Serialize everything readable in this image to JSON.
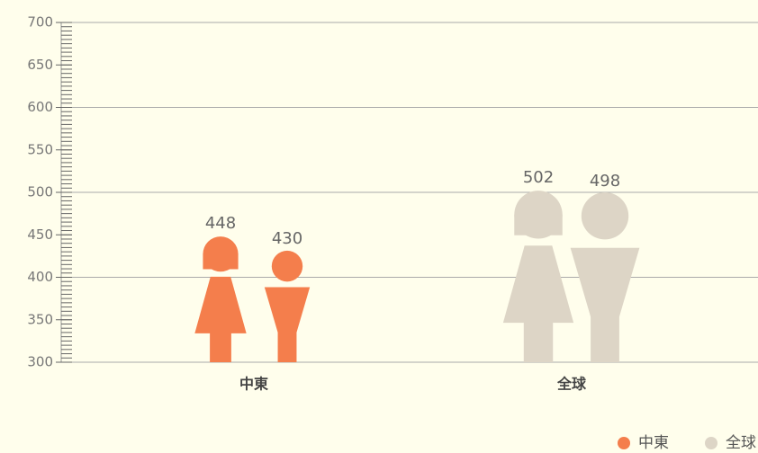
{
  "chart_data": {
    "type": "pictogram",
    "series": [
      {
        "name": "中東",
        "color": "#f47e4c",
        "values": [
          448,
          430
        ]
      },
      {
        "name": "全球",
        "color": "#ddd5c6",
        "values": [
          502,
          498
        ]
      }
    ],
    "ylim": [
      300,
      700
    ],
    "yticks": [
      300,
      350,
      400,
      450,
      500,
      550,
      600,
      650,
      700
    ],
    "minor_yticks": [
      300,
      305,
      310,
      315,
      320,
      325,
      330,
      335,
      340,
      345,
      350,
      355,
      360,
      365,
      370,
      375,
      380,
      385,
      390,
      395,
      400,
      405,
      410,
      415,
      420,
      425,
      430,
      435,
      440,
      445,
      450,
      455,
      460,
      465,
      470,
      475,
      480,
      485,
      490,
      495,
      500,
      505,
      510,
      515,
      520,
      525,
      530,
      535,
      540,
      545,
      550,
      555,
      560,
      565,
      570,
      575,
      580,
      585,
      590,
      595,
      600,
      605,
      610,
      615,
      620,
      625,
      630,
      635,
      640,
      645,
      650,
      655,
      660,
      665,
      670,
      675,
      680,
      685,
      690,
      695,
      700
    ],
    "gridlines": [
      300,
      400,
      500,
      600,
      700
    ],
    "legend": "bottom-right"
  }
}
